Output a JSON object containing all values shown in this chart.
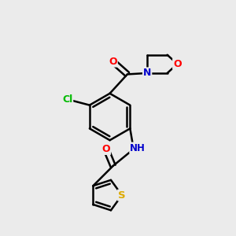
{
  "bg_color": "#ebebeb",
  "bond_color": "#000000",
  "bond_width": 1.8,
  "atom_colors": {
    "O": "#ff0000",
    "N": "#0000cc",
    "S": "#ddaa00",
    "Cl": "#00bb00",
    "C": "#000000",
    "H": "#444444"
  },
  "font_size": 8.5,
  "fig_width": 3.0,
  "fig_height": 3.0,
  "xlim": [
    0,
    10
  ],
  "ylim": [
    0,
    10
  ]
}
